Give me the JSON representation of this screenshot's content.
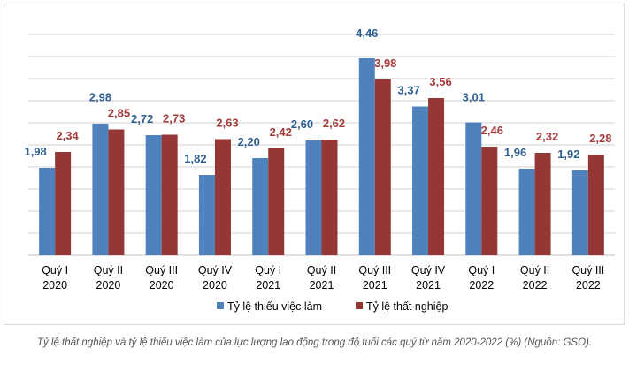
{
  "chart_data": {
    "type": "bar",
    "categories": [
      [
        "Quý I",
        "2020"
      ],
      [
        "Quý II",
        "2020"
      ],
      [
        "Quý III",
        "2020"
      ],
      [
        "Quý IV",
        "2020"
      ],
      [
        "Quý I",
        "2021"
      ],
      [
        "Quý II",
        "2021"
      ],
      [
        "Quý III",
        "2021"
      ],
      [
        "Quý IV",
        "2021"
      ],
      [
        "Quý I",
        "2022"
      ],
      [
        "Quý II",
        "2022"
      ],
      [
        "Quý III",
        "2022"
      ]
    ],
    "series": [
      {
        "name": "Tỷ lệ thiếu việc làm",
        "color": "#4f81bd",
        "label_color": "#2e5f91",
        "values": [
          1.98,
          2.98,
          2.72,
          1.82,
          2.2,
          2.6,
          4.46,
          3.37,
          3.01,
          1.96,
          1.92
        ],
        "labels": [
          "1,98",
          "2,98",
          "2,72",
          "1,82",
          "2,20",
          "2,60",
          "4,46",
          "3,37",
          "3,01",
          "1,96",
          "1,92"
        ]
      },
      {
        "name": "Tỷ lệ thất nghiệp",
        "color": "#953735",
        "label_color": "#a33b39",
        "values": [
          2.34,
          2.85,
          2.73,
          2.63,
          2.42,
          2.62,
          3.98,
          3.56,
          2.46,
          2.32,
          2.28
        ],
        "labels": [
          "2,34",
          "2,85",
          "2,73",
          "2,63",
          "2,42",
          "2,62",
          "3,98",
          "3,56",
          "2,46",
          "2,32",
          "2,28"
        ]
      }
    ],
    "ylim": [
      0,
      5
    ],
    "grid": true,
    "legend": "bottom",
    "gridline_color": "#d0d0d0"
  },
  "caption": "Tỷ lệ thất nghiệp và tỷ lệ thiếu việc làm của lực lượng lao động trong độ tuổi các quý từ năm 2020-2022 (%) (Nguồn: GSO)."
}
